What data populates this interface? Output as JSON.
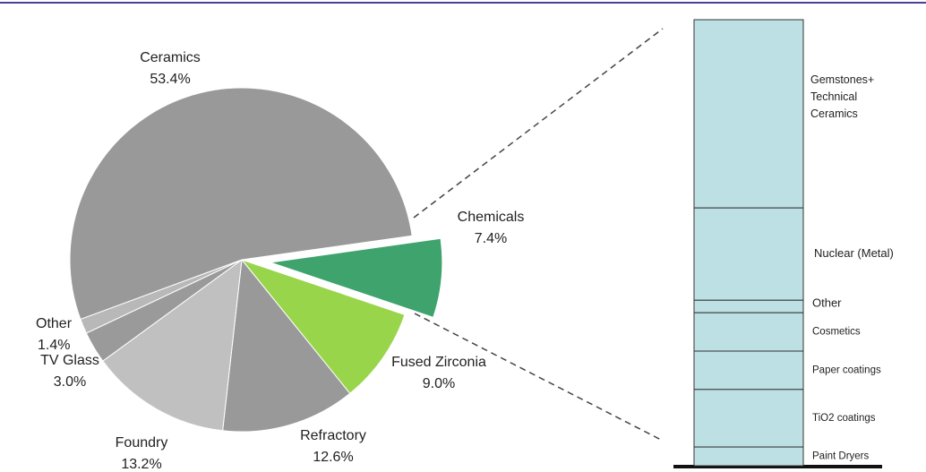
{
  "chart_data": [
    {
      "type": "pie",
      "categories": [
        "Chemicals",
        "Fused Zirconia",
        "Refractory",
        "Foundry",
        "TV Glass",
        "Other",
        "Ceramics"
      ],
      "values": [
        7.4,
        9.0,
        12.6,
        13.2,
        3.0,
        1.4,
        53.4
      ],
      "value_labels": [
        "7.4%",
        "9.0%",
        "12.6%",
        "13.2%",
        "3.0%",
        "1.4%",
        "53.4%"
      ],
      "colors": [
        "#3fa36d",
        "#99d54b",
        "#999999",
        "#c0c0c0",
        "#9a9a9a",
        "#b8b8b8",
        "#999999"
      ]
    },
    {
      "type": "stacked_bar",
      "categories": [
        "Gemstones+ Technical Ceramics",
        "Nuclear (Metal)",
        "Other",
        "Cosmetics",
        "Paper coatings",
        "TiO2 coatings",
        "Paint Dryers"
      ],
      "values": [
        42.2,
        20.7,
        2.8,
        8.6,
        8.6,
        12.9,
        4.2
      ],
      "color": "#bde0e5"
    }
  ]
}
